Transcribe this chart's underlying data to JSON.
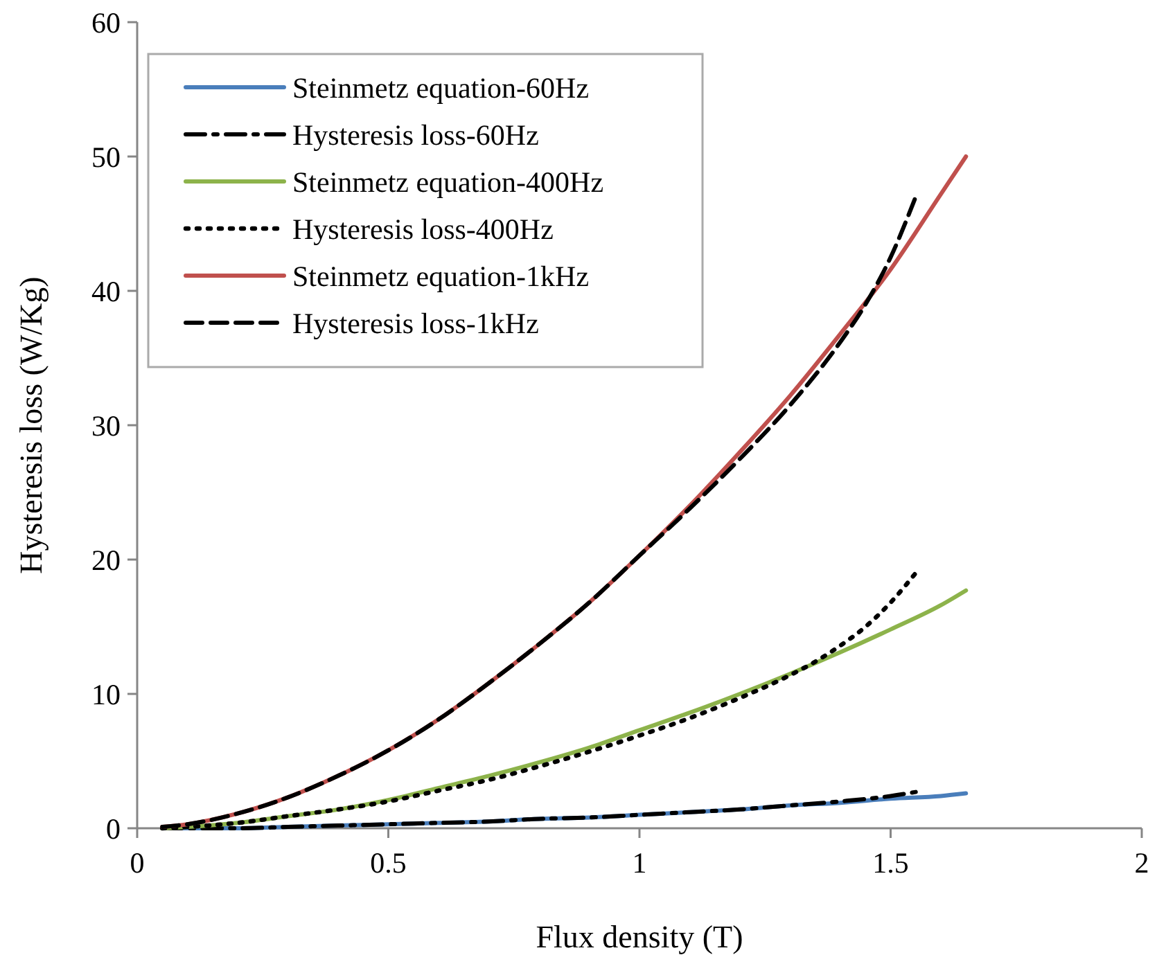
{
  "chart_data": {
    "type": "line",
    "xlabel": "Flux density (T)",
    "ylabel": "Hysteresis loss (W/Kg)",
    "xlim": [
      0,
      2
    ],
    "xticks": [
      0,
      0.5,
      1,
      1.5,
      2
    ],
    "ylim": [
      0,
      60
    ],
    "yticks": [
      0,
      10,
      20,
      30,
      40,
      50,
      60
    ],
    "grid": false,
    "legend": "top left",
    "marker": "none",
    "series": [
      {
        "name": "Steinmetz equation-60Hz",
        "color": "#4a7ebb",
        "line_style": "solid",
        "x": [
          0.05,
          0.1,
          0.2,
          0.3,
          0.4,
          0.5,
          0.6,
          0.7,
          0.8,
          0.9,
          1.0,
          1.1,
          1.2,
          1.3,
          1.4,
          1.5,
          1.6,
          1.65
        ],
        "values": [
          0,
          0,
          0,
          0.1,
          0.2,
          0.3,
          0.4,
          0.5,
          0.7,
          0.8,
          1.0,
          1.2,
          1.4,
          1.7,
          1.9,
          2.2,
          2.4,
          2.6
        ]
      },
      {
        "name": "Hysteresis loss-60Hz",
        "color": "#000000",
        "line_style": "dashdot",
        "x": [
          0.05,
          0.1,
          0.2,
          0.3,
          0.4,
          0.5,
          0.6,
          0.7,
          0.8,
          0.9,
          1.0,
          1.1,
          1.2,
          1.3,
          1.4,
          1.5,
          1.55
        ],
        "values": [
          0,
          0,
          0,
          0.1,
          0.2,
          0.3,
          0.4,
          0.5,
          0.7,
          0.8,
          1.0,
          1.2,
          1.4,
          1.7,
          2.0,
          2.4,
          2.7
        ]
      },
      {
        "name": "Steinmetz equation-400Hz",
        "color": "#8db34b",
        "line_style": "solid",
        "x": [
          0.05,
          0.1,
          0.2,
          0.3,
          0.4,
          0.5,
          0.6,
          0.7,
          0.8,
          0.9,
          1.0,
          1.1,
          1.2,
          1.3,
          1.4,
          1.5,
          1.6,
          1.65
        ],
        "values": [
          0,
          0.1,
          0.4,
          0.9,
          1.4,
          2.1,
          3.0,
          3.9,
          4.9,
          6.0,
          7.3,
          8.6,
          10.0,
          11.5,
          13.1,
          14.8,
          16.6,
          17.7
        ]
      },
      {
        "name": "Hysteresis loss-400Hz",
        "color": "#000000",
        "line_style": "dotted",
        "x": [
          0.05,
          0.1,
          0.2,
          0.3,
          0.4,
          0.5,
          0.6,
          0.7,
          0.8,
          0.9,
          1.0,
          1.1,
          1.2,
          1.3,
          1.35,
          1.4,
          1.45,
          1.5,
          1.55
        ],
        "values": [
          0,
          0.1,
          0.4,
          0.9,
          1.4,
          2.0,
          2.8,
          3.6,
          4.6,
          5.7,
          6.9,
          8.2,
          9.7,
          11.4,
          12.4,
          13.6,
          15.0,
          16.8,
          19.0
        ]
      },
      {
        "name": "Steinmetz equation-1kHz",
        "color": "#c0504d",
        "line_style": "solid",
        "x": [
          0.05,
          0.1,
          0.2,
          0.3,
          0.4,
          0.5,
          0.6,
          0.7,
          0.8,
          0.9,
          1.0,
          1.1,
          1.2,
          1.3,
          1.4,
          1.5,
          1.6,
          1.65
        ],
        "values": [
          0.1,
          0.3,
          1.1,
          2.3,
          3.9,
          5.8,
          8.1,
          10.8,
          13.7,
          16.8,
          20.3,
          24.0,
          28.0,
          32.2,
          36.8,
          41.6,
          47.2,
          50.0
        ]
      },
      {
        "name": "Hysteresis loss-1kHz",
        "color": "#000000",
        "line_style": "dashed",
        "x": [
          0.05,
          0.1,
          0.2,
          0.3,
          0.4,
          0.5,
          0.6,
          0.7,
          0.8,
          0.9,
          1.0,
          1.1,
          1.2,
          1.3,
          1.4,
          1.45,
          1.5,
          1.55
        ],
        "values": [
          0.1,
          0.3,
          1.1,
          2.3,
          3.9,
          5.8,
          8.1,
          10.8,
          13.7,
          16.8,
          20.3,
          23.8,
          27.5,
          31.5,
          36.2,
          39.0,
          42.5,
          47.0
        ]
      }
    ]
  }
}
